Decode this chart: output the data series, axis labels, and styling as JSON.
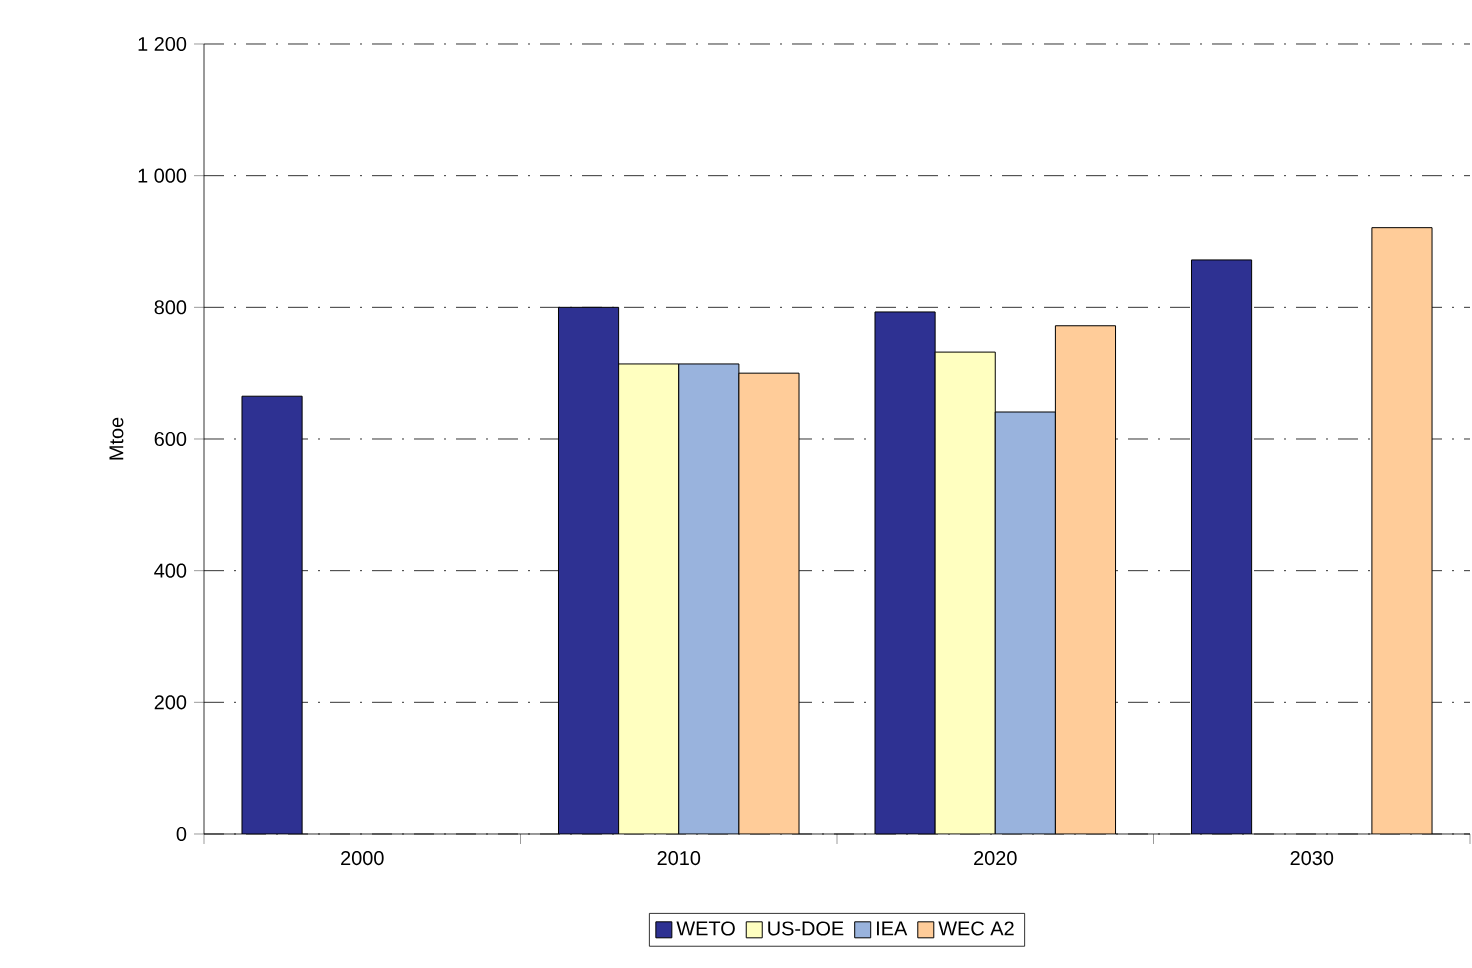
{
  "chart_data": {
    "type": "bar",
    "ylabel": "Mtoe",
    "categories": [
      "2000",
      "2010",
      "2020",
      "2030"
    ],
    "series": [
      {
        "name": "WETO",
        "color": "#2e3192",
        "values": [
          665,
          800,
          793,
          872
        ]
      },
      {
        "name": "US-DOE",
        "color": "#ffffc0",
        "values": [
          null,
          714,
          732,
          null
        ]
      },
      {
        "name": "IEA",
        "color": "#99b3dd",
        "values": [
          null,
          714,
          641,
          null
        ]
      },
      {
        "name": "WEC A2",
        "color": "#ffcc99",
        "values": [
          null,
          700,
          772,
          921
        ]
      }
    ],
    "ylim": [
      0,
      1200
    ],
    "yticks": [
      0,
      200,
      400,
      600,
      800,
      {
        "value": 1000,
        "label": "1 000"
      },
      {
        "value": 1200,
        "label": "1 200"
      }
    ],
    "grid": "y",
    "legend": "bottom"
  }
}
